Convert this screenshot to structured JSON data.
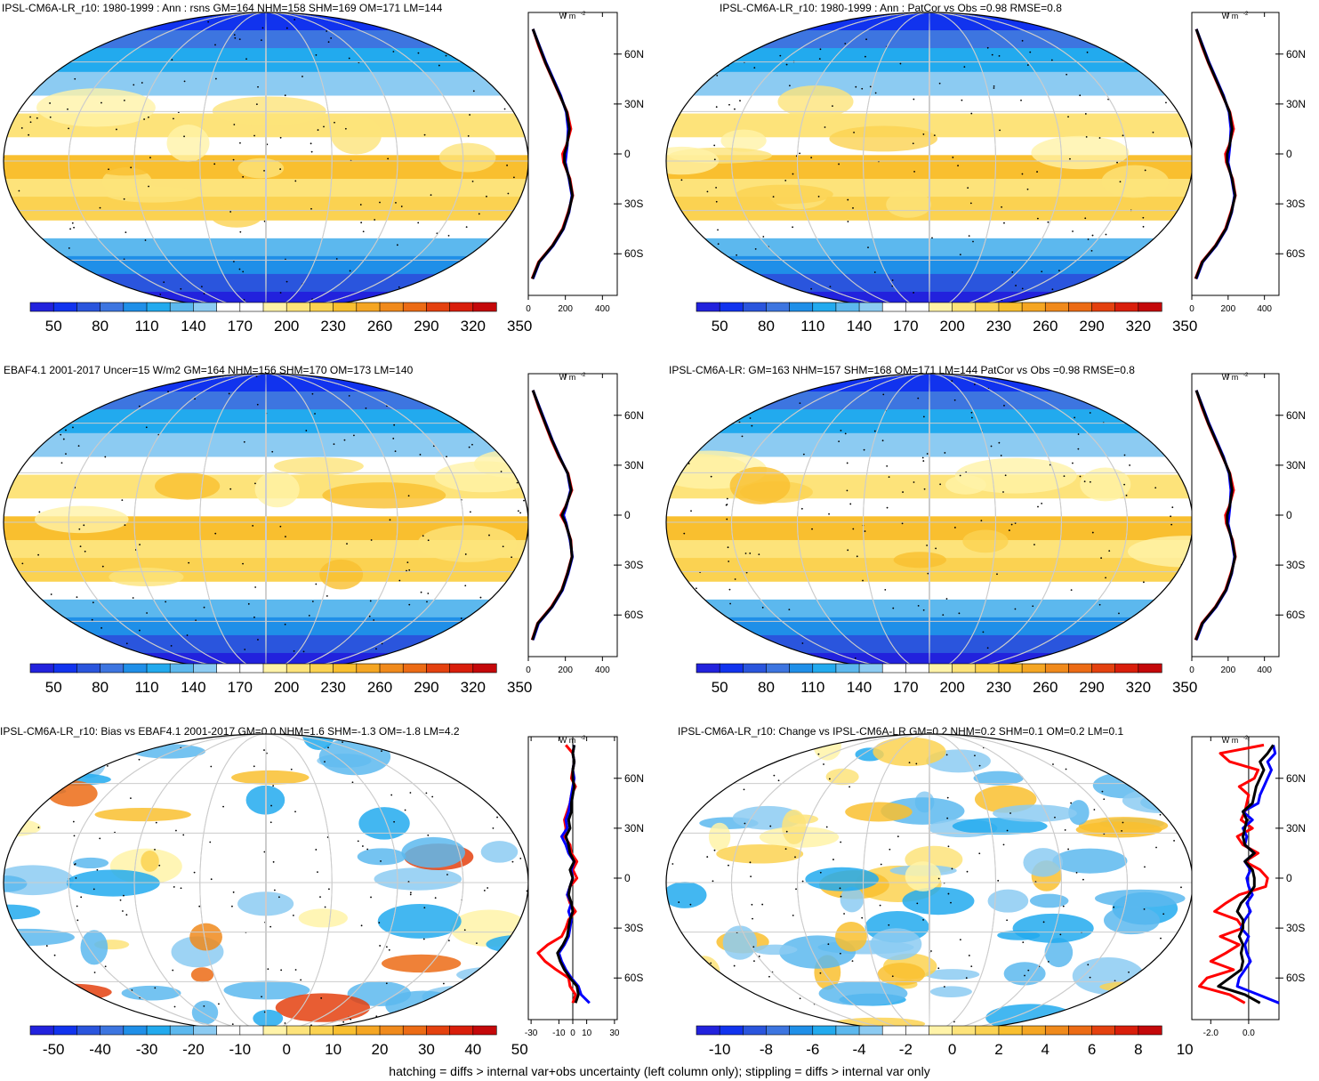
{
  "figure": {
    "footer": "hatching = diffs > internal var+obs uncertainty (left column only); stippling = diffs > internal var only",
    "units_label": "W m",
    "units_sup": "-2",
    "lat_ticks": [
      "60N",
      "30N",
      "0",
      "30S",
      "60S"
    ]
  },
  "colormaps": {
    "abs": [
      "#2222dd",
      "#1133ee",
      "#2a55dd",
      "#3d75e0",
      "#1f8fe8",
      "#22aaee",
      "#5cb8ee",
      "#8ccbf2",
      "#ffffff",
      "#ffffff",
      "#fff3a8",
      "#fde37a",
      "#fbd251",
      "#f9bf2f",
      "#f5a623",
      "#f08a1c",
      "#ec6b15",
      "#e4410f",
      "#d91e0b",
      "#c4080a"
    ],
    "bias": [
      "#2222dd",
      "#1133ee",
      "#2a55dd",
      "#3d75e0",
      "#1f8fe8",
      "#22aaee",
      "#5cb8ee",
      "#8ccbf2",
      "#ffffff",
      "#ffffff",
      "#fff3a8",
      "#fde37a",
      "#fbd251",
      "#f9bf2f",
      "#f5a623",
      "#f08a1c",
      "#ec6b15",
      "#e4410f",
      "#d91e0b",
      "#c4080a"
    ],
    "change": [
      "#2222dd",
      "#1133ee",
      "#2a55dd",
      "#3d75e0",
      "#1f8fe8",
      "#22aaee",
      "#5cb8ee",
      "#8ccbf2",
      "#ffffff",
      "#ffffff",
      "#fff3a8",
      "#fde37a",
      "#fbd251",
      "#f9bf2f",
      "#f5a623",
      "#f08a1c",
      "#ec6b15",
      "#e4410f",
      "#d91e0b",
      "#c4080a"
    ]
  },
  "chart_data": [
    {
      "type": "heatmap",
      "title": "IPSL-CM6A-LR_r10: 1980-1999 : Ann : rsns GM=164 NHM=158 SHM=169 OM=171 LM=144",
      "colorbar_labels": [
        "50",
        "80",
        "110",
        "140",
        "170",
        "200",
        "230",
        "260",
        "290",
        "320",
        "350"
      ],
      "profile": {
        "type": "line",
        "x_ticks": [
          "0",
          "200",
          "400"
        ],
        "xlim": [
          0,
          480
        ],
        "lat": [
          -75,
          -65,
          -55,
          -45,
          -35,
          -25,
          -15,
          -5,
          0,
          5,
          15,
          25,
          35,
          45,
          55,
          65,
          75
        ],
        "series": [
          {
            "color": "#ff0000",
            "values": [
              20,
              55,
              130,
              185,
              215,
              240,
              225,
              190,
              185,
              205,
              230,
              210,
              170,
              130,
              90,
              55,
              25
            ]
          },
          {
            "color": "#0000ff",
            "values": [
              25,
              60,
              135,
              190,
              220,
              235,
              220,
              200,
              205,
              210,
              215,
              205,
              175,
              135,
              95,
              60,
              25
            ]
          },
          {
            "color": "#000000",
            "values": [
              22,
              58,
              132,
              188,
              218,
              238,
              222,
              195,
              195,
              208,
              222,
              208,
              172,
              132,
              92,
              58,
              25
            ]
          }
        ]
      }
    },
    {
      "type": "heatmap",
      "title": "IPSL-CM6A-LR_r10: 1980-1999 : Ann : PatCor vs Obs =0.98 RMSE=0.8",
      "colorbar_labels": [
        "50",
        "80",
        "110",
        "140",
        "170",
        "200",
        "230",
        "260",
        "290",
        "320",
        "350"
      ],
      "profile": {
        "type": "line",
        "x_ticks": [
          "0",
          "200",
          "400"
        ],
        "xlim": [
          0,
          480
        ],
        "lat": [
          -75,
          -65,
          -55,
          -45,
          -35,
          -25,
          -15,
          -5,
          0,
          5,
          15,
          25,
          35,
          45,
          55,
          65,
          75
        ],
        "series": [
          {
            "color": "#ff0000",
            "values": [
              20,
              55,
              130,
              185,
              215,
              240,
              225,
              190,
              185,
              205,
              230,
              210,
              170,
              130,
              90,
              55,
              25
            ]
          },
          {
            "color": "#0000ff",
            "values": [
              25,
              60,
              135,
              190,
              220,
              235,
              220,
              200,
              205,
              210,
              215,
              205,
              175,
              135,
              95,
              60,
              25
            ]
          },
          {
            "color": "#000000",
            "values": [
              22,
              58,
              132,
              188,
              218,
              238,
              222,
              195,
              195,
              208,
              222,
              208,
              172,
              132,
              92,
              58,
              25
            ]
          }
        ]
      }
    },
    {
      "type": "heatmap",
      "title": "EBAF4.1 2001-2017 Uncer=15 W/m2 GM=164 NHM=156 SHM=170 OM=173 LM=140",
      "colorbar_labels": [
        "50",
        "80",
        "110",
        "140",
        "170",
        "200",
        "230",
        "260",
        "290",
        "320",
        "350"
      ],
      "profile": {
        "type": "line",
        "x_ticks": [
          "0",
          "200",
          "400"
        ],
        "xlim": [
          0,
          480
        ],
        "lat": [
          -75,
          -65,
          -55,
          -45,
          -35,
          -25,
          -15,
          -5,
          0,
          5,
          15,
          25,
          35,
          45,
          55,
          65,
          75
        ],
        "series": [
          {
            "color": "#ff0000",
            "values": [
              20,
              50,
              125,
              180,
              210,
              235,
              230,
              200,
              175,
              200,
              235,
              215,
              165,
              125,
              90,
              55,
              25
            ]
          },
          {
            "color": "#0000ff",
            "values": [
              25,
              55,
              130,
              185,
              215,
              238,
              225,
              205,
              190,
              205,
              228,
              212,
              170,
              130,
              95,
              60,
              25
            ]
          },
          {
            "color": "#000000",
            "values": [
              22,
              52,
              128,
              182,
              212,
              236,
              228,
              202,
              182,
              202,
              232,
              213,
              168,
              128,
              92,
              58,
              25
            ]
          }
        ]
      }
    },
    {
      "type": "heatmap",
      "title": "IPSL-CM6A-LR: GM=163 NHM=157 SHM=168 OM=171 LM=144 PatCor vs Obs =0.98 RMSE=0.8",
      "colorbar_labels": [
        "50",
        "80",
        "110",
        "140",
        "170",
        "200",
        "230",
        "260",
        "290",
        "320",
        "350"
      ],
      "profile": {
        "type": "line",
        "x_ticks": [
          "0",
          "200",
          "400"
        ],
        "xlim": [
          0,
          480
        ],
        "lat": [
          -75,
          -65,
          -55,
          -45,
          -35,
          -25,
          -15,
          -5,
          0,
          5,
          15,
          25,
          35,
          45,
          55,
          65,
          75
        ],
        "series": [
          {
            "color": "#ff0000",
            "values": [
              20,
              55,
              130,
              185,
              215,
              240,
              225,
              190,
              185,
              205,
              230,
              210,
              170,
              130,
              90,
              55,
              25
            ]
          },
          {
            "color": "#0000ff",
            "values": [
              25,
              60,
              135,
              190,
              220,
              235,
              220,
              200,
              205,
              210,
              215,
              205,
              175,
              135,
              95,
              60,
              25
            ]
          },
          {
            "color": "#000000",
            "values": [
              22,
              58,
              132,
              188,
              218,
              238,
              222,
              195,
              195,
              208,
              222,
              208,
              172,
              132,
              92,
              58,
              25
            ]
          }
        ]
      }
    },
    {
      "type": "heatmap",
      "title": "IPSL-CM6A-LR_r10: Bias vs EBAF4.1 2001-2017 GM=0.0 NHM=1.6 SHM=-1.3 OM=-1.8 LM=4.2",
      "colorbar_labels": [
        "-50",
        "-40",
        "-30",
        "-20",
        "-10",
        "0",
        "10",
        "20",
        "30",
        "40",
        "50"
      ],
      "profile": {
        "type": "line",
        "x_ticks": [
          "-30",
          "-10",
          "0",
          "10",
          "30"
        ],
        "xlim": [
          -32,
          32
        ],
        "lat": [
          -75,
          -70,
          -65,
          -60,
          -55,
          -50,
          -45,
          -40,
          -35,
          -30,
          -25,
          -20,
          -15,
          -10,
          -5,
          0,
          5,
          10,
          15,
          20,
          25,
          30,
          35,
          40,
          45,
          50,
          55,
          60,
          65,
          70,
          75,
          80
        ],
        "series": [
          {
            "color": "#ff0000",
            "values": [
              0,
              2,
              -2,
              -3,
              -12,
              -20,
              -25,
              -18,
              -8,
              -5,
              -3,
              2,
              -2,
              -4,
              -2,
              3,
              0,
              3,
              -1,
              -2,
              -6,
              -5,
              -6,
              -4,
              -2,
              -1,
              2,
              -1,
              0,
              1,
              0,
              -5
            ]
          },
          {
            "color": "#0000ff",
            "values": [
              12,
              6,
              4,
              -1,
              -5,
              -8,
              -10,
              -6,
              -3,
              -2,
              -1,
              -3,
              -1,
              -4,
              -2,
              0,
              -1,
              1,
              -3,
              -5,
              -8,
              -4,
              -5,
              -3,
              -2,
              -1,
              0,
              1,
              0,
              1,
              0,
              1
            ]
          },
          {
            "color": "#000000",
            "values": [
              2,
              4,
              3,
              -2,
              -6,
              -9,
              -11,
              -7,
              -4,
              -3,
              -2,
              0,
              -1,
              -3,
              -2,
              0,
              -2,
              1,
              -2,
              -3,
              -5,
              -2,
              -3,
              -1,
              -1,
              0,
              1,
              0,
              0,
              1,
              0,
              1
            ]
          }
        ]
      }
    },
    {
      "type": "heatmap",
      "title": "IPSL-CM6A-LR_r10: Change vs IPSL-CM6A-LR GM=0.2 NHM=0.2 SHM=0.1 OM=0.2 LM=0.1",
      "colorbar_labels": [
        "-10",
        "-8",
        "-6",
        "-4",
        "-2",
        "0",
        "2",
        "4",
        "6",
        "8",
        "10"
      ],
      "profile": {
        "type": "line",
        "x_ticks": [
          "-2.0",
          "0.0"
        ],
        "xlim": [
          -3.0,
          1.6
        ],
        "lat": [
          -75,
          -70,
          -65,
          -60,
          -55,
          -50,
          -45,
          -40,
          -35,
          -30,
          -25,
          -20,
          -15,
          -10,
          -5,
          0,
          5,
          10,
          15,
          20,
          25,
          30,
          35,
          40,
          45,
          50,
          55,
          60,
          65,
          70,
          75,
          80
        ],
        "series": [
          {
            "color": "#ff0000",
            "values": [
              -0.2,
              -1.0,
              -2.6,
              -2.2,
              -0.8,
              -2.0,
              -1.2,
              -0.5,
              -1.5,
              -0.3,
              -0.6,
              -1.8,
              -1.2,
              -0.5,
              0.9,
              1.0,
              0.6,
              -0.2,
              0.5,
              -0.3,
              -0.6,
              0.2,
              -0.4,
              -0.2,
              -0.1,
              0.0,
              -0.5,
              0.3,
              0.5,
              -1.0,
              -1.5,
              0.8
            ]
          },
          {
            "color": "#0000ff",
            "values": [
              1.6,
              0.5,
              -0.6,
              -0.5,
              -0.2,
              0.1,
              -0.1,
              -0.2,
              0.0,
              -0.4,
              -0.2,
              0.1,
              -0.1,
              0.2,
              0.0,
              -0.1,
              0.1,
              -0.2,
              0.3,
              -0.2,
              -0.1,
              -0.3,
              0.2,
              -0.3,
              0.5,
              0.6,
              0.8,
              1.0,
              1.2,
              1.0,
              1.4,
              1.3
            ]
          },
          {
            "color": "#000000",
            "values": [
              0.6,
              -0.2,
              -1.6,
              -1.0,
              -0.4,
              -0.3,
              -0.4,
              -0.3,
              -0.5,
              -0.3,
              -0.3,
              -0.6,
              -0.4,
              0.0,
              0.3,
              0.3,
              0.2,
              -0.2,
              0.3,
              -0.2,
              -0.3,
              -0.2,
              -0.1,
              -0.3,
              0.2,
              0.3,
              0.4,
              0.6,
              0.8,
              0.6,
              1.0,
              1.3
            ]
          }
        ]
      }
    }
  ]
}
